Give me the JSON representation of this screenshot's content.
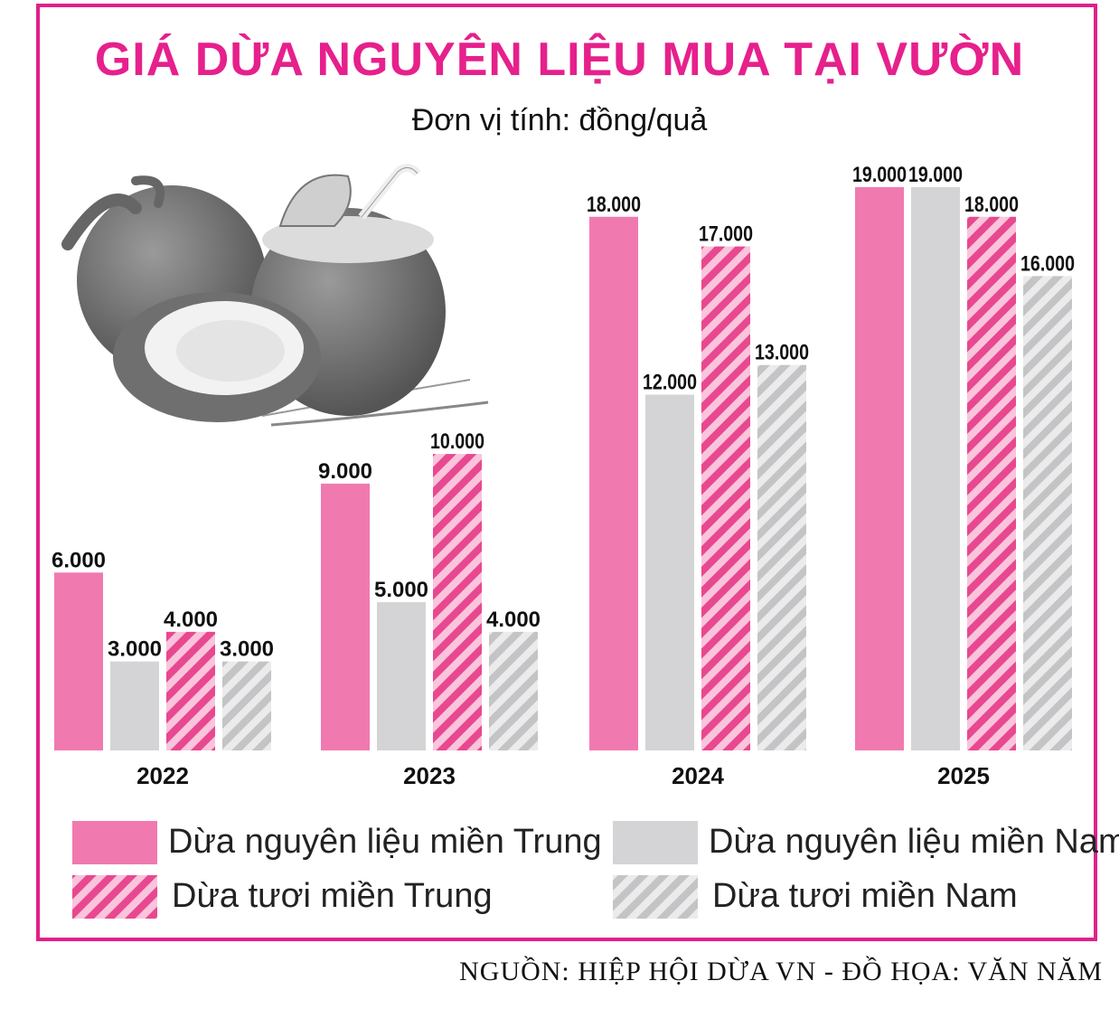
{
  "header": {
    "title": "GIÁ DỪA NGUYÊN LIỆU MUA TẠI VƯỜN",
    "subtitle": "Đơn vị tính: đồng/quả"
  },
  "footer": {
    "source": "NGUỒN: HIỆP HỘI DỪA VN - ĐỒ HỌA: VĂN NĂM"
  },
  "colors": {
    "accent": "#e0208a",
    "pink": "#f07ab0",
    "gray": "#d4d4d6",
    "hatch_pink": "#e8488f",
    "hatch_gray": "#c4c4c6"
  },
  "illustration": {
    "icon": "coconut-illustration"
  },
  "chart_data": {
    "type": "bar",
    "title": "GIÁ DỪA NGUYÊN LIỆU MUA TẠI VƯỜN",
    "ylabel": "Đơn vị tính: đồng/quả",
    "categories": [
      "2022",
      "2023",
      "2024",
      "2025"
    ],
    "series": [
      {
        "name": "Dừa nguyên liệu miền Trung",
        "pattern": "solid-pink",
        "values": [
          6000,
          9000,
          18000,
          19000
        ],
        "labels": [
          "6.000",
          "9.000",
          "18.000",
          "19.000"
        ]
      },
      {
        "name": "Dừa nguyên liệu miền Nam",
        "pattern": "solid-gray",
        "values": [
          3000,
          5000,
          12000,
          19000
        ],
        "labels": [
          "3.000",
          "5.000",
          "12.000",
          "19.000"
        ]
      },
      {
        "name": "Dừa tươi miền Trung",
        "pattern": "hatched-pink",
        "values": [
          4000,
          10000,
          17000,
          18000
        ],
        "labels": [
          "4.000",
          "10.000",
          "17.000",
          "18.000"
        ]
      },
      {
        "name": "Dừa tươi miền Nam",
        "pattern": "hatched-gray",
        "values": [
          3000,
          4000,
          13000,
          16000
        ],
        "labels": [
          "3.000",
          "4.000",
          "13.000",
          "16.000"
        ]
      }
    ],
    "ylim": [
      0,
      19000
    ],
    "grid": false,
    "legend_position": "bottom"
  }
}
